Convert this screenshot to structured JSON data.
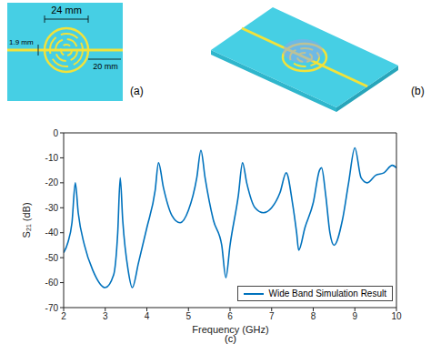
{
  "panels": [
    {
      "label": "(a)",
      "dimensions": [
        "24 mm",
        "1.9 mm",
        "20 mm"
      ]
    },
    {
      "label": "(b)"
    },
    {
      "label": "(c)"
    }
  ],
  "chart_data": {
    "type": "line",
    "xlabel": "Frequency (GHz)",
    "ylabel": "S₂₁ (dB)",
    "x": [
      2.0,
      2.1,
      2.2,
      2.28,
      2.35,
      2.5,
      2.7,
      3.0,
      3.2,
      3.3,
      3.36,
      3.42,
      3.55,
      3.65,
      3.8,
      4.0,
      4.2,
      4.28,
      4.4,
      4.6,
      4.8,
      5.0,
      5.2,
      5.3,
      5.4,
      5.6,
      5.8,
      5.9,
      6.0,
      6.2,
      6.3,
      6.4,
      6.6,
      6.8,
      7.0,
      7.2,
      7.35,
      7.5,
      7.6,
      7.65,
      7.8,
      8.0,
      8.15,
      8.2,
      8.3,
      8.4,
      8.5,
      8.7,
      8.85,
      9.0,
      9.15,
      9.3,
      9.5,
      9.7,
      9.9,
      10.0
    ],
    "series": [
      {
        "name": "Wide Band Simulation Result",
        "color": "#0072bd",
        "values": [
          -48,
          -44,
          -36,
          -20,
          -32,
          -45,
          -55,
          -62,
          -57,
          -40,
          -18,
          -35,
          -55,
          -62,
          -52,
          -38,
          -23,
          -12,
          -22,
          -33,
          -36,
          -31,
          -18,
          -7,
          -18,
          -35,
          -45,
          -58,
          -45,
          -25,
          -12,
          -20,
          -30,
          -32,
          -30,
          -24,
          -16,
          -28,
          -40,
          -47,
          -38,
          -28,
          -15,
          -14,
          -25,
          -40,
          -45,
          -35,
          -20,
          -6,
          -18,
          -20,
          -17,
          -16,
          -13,
          -14
        ]
      }
    ],
    "xlim": [
      2,
      10
    ],
    "ylim": [
      -70,
      0
    ],
    "xticks": [
      2,
      3,
      4,
      5,
      6,
      7,
      8,
      9,
      10
    ],
    "yticks": [
      -70,
      -60,
      -50,
      -40,
      -30,
      -20,
      -10,
      0
    ],
    "grid": false,
    "legend": "lower right"
  }
}
